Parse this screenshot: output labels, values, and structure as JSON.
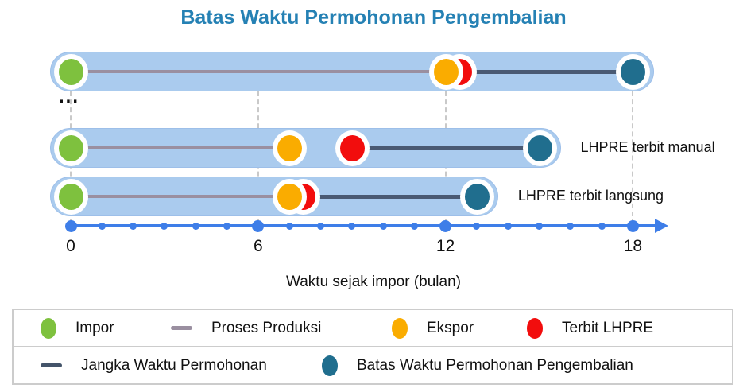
{
  "title": "Batas Waktu Permohonan Pengembalian",
  "chart_data": {
    "type": "timeline",
    "title": "Batas Waktu Permohonan Pengembalian",
    "xlabel": "Waktu sejak impor (bulan)",
    "x_ticks": [
      0,
      6,
      12,
      18
    ],
    "xlim": [
      0,
      19
    ],
    "unit": "bulan",
    "ellipsis": "...",
    "rows": [
      {
        "label": "",
        "months": {
          "impor": 0,
          "ekspor": 12,
          "terbit_lhpre": 12,
          "batas": 18
        },
        "lhpre_overlap": true
      },
      {
        "label": "LHPRE terbit manual",
        "months": {
          "impor": 0,
          "ekspor": 7,
          "terbit_lhpre": 9,
          "batas": 15
        },
        "lhpre_overlap": false
      },
      {
        "label": "LHPRE terbit langsung",
        "months": {
          "impor": 0,
          "ekspor": 7,
          "terbit_lhpre": 7,
          "batas": 13
        },
        "lhpre_overlap": true
      }
    ],
    "point_colors": {
      "impor": "#7EC13E",
      "ekspor": "#FAAC00",
      "terbit_lhpre": "#F20D0D",
      "batas": "#206E8E"
    },
    "line_colors": {
      "proses_produksi": "#9A8FA0",
      "jangka_waktu": "#4A5A73"
    },
    "axis_color": "#3E7EE8"
  },
  "legend": {
    "rows": [
      [
        {
          "type": "dot",
          "icon": "impor-dot-icon",
          "color": "#7EC13E",
          "label": "Impor"
        },
        {
          "type": "line",
          "icon": "proses-produksi-line-icon",
          "color": "#9A8FA0",
          "label": "Proses Produksi"
        },
        {
          "type": "dot",
          "icon": "ekspor-dot-icon",
          "color": "#FAAC00",
          "label": "Ekspor"
        },
        {
          "type": "dot",
          "icon": "terbit-lhpre-dot-icon",
          "color": "#F20D0D",
          "label": "Terbit LHPRE"
        }
      ],
      [
        {
          "type": "line",
          "icon": "jangka-waktu-line-icon",
          "color": "#44546A",
          "label": "Jangka Waktu Permohonan"
        },
        {
          "type": "dot",
          "icon": "batas-dot-icon",
          "color": "#206E8E",
          "label": "Batas Waktu Permohonan Pengembalian"
        }
      ]
    ]
  },
  "colors": {
    "title": "#2581B4",
    "bar_fill": "#AACBEE",
    "bar_border": "#9DBFE9",
    "grid": "#C9C9C9",
    "axis": "#3E7EE8",
    "legend_border": "#CCCCCC",
    "text": "#111111"
  }
}
